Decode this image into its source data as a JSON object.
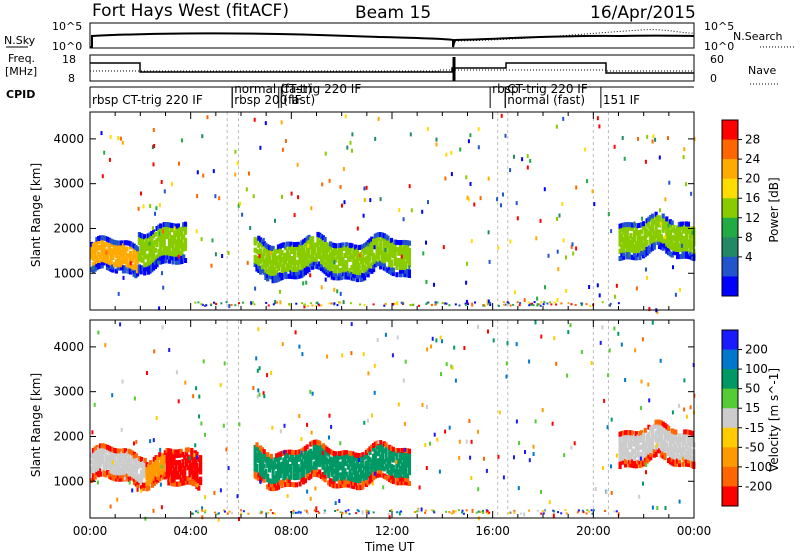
{
  "header": {
    "radar": "Fort Hays West (fitACF)",
    "beam": "Beam 15",
    "date": "16/Apr/2015"
  },
  "strips": {
    "nsky_label": "N.Sky",
    "nsearch_label": "N.Search",
    "nsky_ticks": [
      "10^5",
      "10^0"
    ],
    "freq_label_1": "Freq.",
    "freq_label_2": "[MHz]",
    "freq_ticks": [
      "18",
      "8"
    ],
    "nave_label": "Nave",
    "nave_ticks": [
      "60",
      "0"
    ],
    "cpid_label": "CPID",
    "cpid_segments": [
      {
        "text": "rbsp  CT-trig  220  IF",
        "start": 0.0
      },
      {
        "text": "normal  (fast)",
        "start": 5.65
      },
      {
        "text": "rbsp  200  IF",
        "start": 5.65
      },
      {
        "text": "CT-trig  220  IF",
        "start": 7.5
      },
      {
        "text": "(fast)",
        "start": 7.6
      },
      {
        "text": "rbsp",
        "start": 15.9
      },
      {
        "text": "CT-trig  220  IF",
        "start": 16.5
      },
      {
        "text": "normal  (fast)",
        "start": 16.5
      },
      {
        "text": "151  IF",
        "start": 20.3
      }
    ]
  },
  "axes": {
    "xlabel": "Time UT",
    "xticks": [
      "00:00",
      "04:00",
      "08:00",
      "12:00",
      "16:00",
      "20:00",
      "00:00"
    ],
    "ylabel": "Slant Range [km]",
    "yticks": [
      "1000",
      "2000",
      "3000",
      "4000"
    ]
  },
  "colorbars": {
    "power": {
      "label": "Power [dB]",
      "ticks": [
        "28",
        "24",
        "20",
        "16",
        "12",
        "8",
        "4"
      ],
      "colors": [
        "#ff0000",
        "#ff6600",
        "#ffaa00",
        "#ffdd00",
        "#88cc00",
        "#22aa44",
        "#228866",
        "#2255cc",
        "#0000ff"
      ]
    },
    "velocity": {
      "label": "Velocity [m s^-1]",
      "ticks": [
        "200",
        "100",
        "50",
        "15",
        "-15",
        "-50",
        "-100",
        "-200"
      ],
      "colors": [
        "#1a1aff",
        "#0077cc",
        "#009966",
        "#55cc33",
        "#cccccc",
        "#ffcc00",
        "#ff9900",
        "#ff6600",
        "#ff0000"
      ]
    }
  },
  "chart_data": [
    {
      "type": "heatmap",
      "title": "Power",
      "xlabel": "Time UT",
      "ylabel": "Slant Range [km]",
      "xlim": [
        0,
        24
      ],
      "ylim": [
        180,
        4600
      ],
      "colorbar": "Power [dB]",
      "bands": [
        {
          "t0": 0.0,
          "t1": 1.9,
          "r_center": 1350,
          "r_width": 700,
          "value": 22
        },
        {
          "t0": 1.9,
          "t1": 3.8,
          "r_center": 1600,
          "r_width": 900,
          "value": 14
        },
        {
          "t0": 6.5,
          "t1": 12.7,
          "r_center": 1350,
          "r_width": 800,
          "value": 12
        },
        {
          "t0": 21.0,
          "t1": 24.0,
          "r_center": 1800,
          "r_width": 800,
          "value": 14
        }
      ]
    },
    {
      "type": "heatmap",
      "title": "Velocity",
      "xlabel": "Time UT",
      "ylabel": "Slant Range [km]",
      "xlim": [
        0,
        24
      ],
      "ylim": [
        180,
        4600
      ],
      "colorbar": "Velocity [m s^-1]",
      "bands": [
        {
          "t0": 0.0,
          "t1": 2.2,
          "r_center": 1350,
          "r_width": 700,
          "value": 0
        },
        {
          "t0": 2.2,
          "t1": 3.0,
          "r_center": 1300,
          "r_width": 600,
          "value": -60
        },
        {
          "t0": 3.0,
          "t1": 4.4,
          "r_center": 1250,
          "r_width": 800,
          "value": -220
        },
        {
          "t0": 6.5,
          "t1": 12.7,
          "r_center": 1350,
          "r_width": 800,
          "value": 60
        },
        {
          "t0": 21.0,
          "t1": 24.0,
          "r_center": 1800,
          "r_width": 800,
          "value": 0
        }
      ]
    }
  ]
}
